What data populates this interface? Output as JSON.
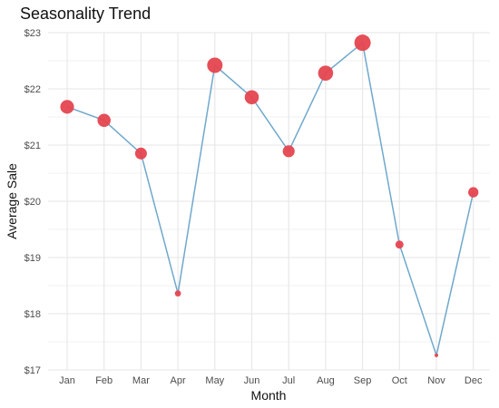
{
  "chart_data": {
    "type": "line",
    "title": "Seasonality Trend",
    "xlabel": "Month",
    "ylabel": "Average Sale",
    "categories": [
      "Jan",
      "Feb",
      "Mar",
      "Apr",
      "May",
      "Jun",
      "Jul",
      "Aug",
      "Sep",
      "Oct",
      "Nov",
      "Dec"
    ],
    "values": [
      21.68,
      21.44,
      20.85,
      18.36,
      22.42,
      21.85,
      20.89,
      22.28,
      22.82,
      19.23,
      17.26,
      20.16
    ],
    "marker_size": "proportional to value",
    "ylim": [
      17,
      23
    ],
    "yticks": [
      17,
      18,
      19,
      20,
      21,
      22,
      23
    ],
    "ytick_labels": [
      "$17",
      "$18",
      "$19",
      "$20",
      "$21",
      "$22",
      "$23"
    ],
    "grid": true,
    "legend": "none",
    "colors": {
      "line": "#6fa8cc",
      "marker": "#e5454f",
      "grid_major": "#e6e6e6",
      "grid_minor": "#f2f2f2"
    }
  }
}
